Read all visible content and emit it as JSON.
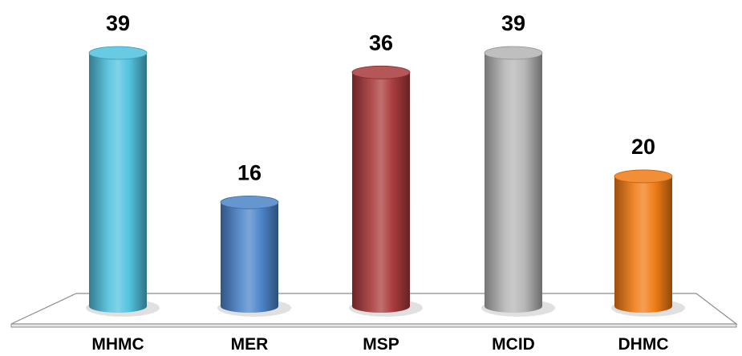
{
  "chart_data": {
    "type": "bar",
    "style": "3d-cylinder",
    "categories": [
      "MHMC",
      "MER",
      "MSP",
      "MCID",
      "DHMC"
    ],
    "values": [
      39,
      16,
      36,
      39,
      20
    ],
    "colors": [
      "#4FC1DE",
      "#4A83C8",
      "#A8383A",
      "#B4B4B4",
      "#F07A12"
    ],
    "data_labels": true,
    "title": "",
    "xlabel": "",
    "ylabel": "",
    "ylim": [
      0,
      39
    ],
    "grid": false,
    "legend": "none"
  }
}
